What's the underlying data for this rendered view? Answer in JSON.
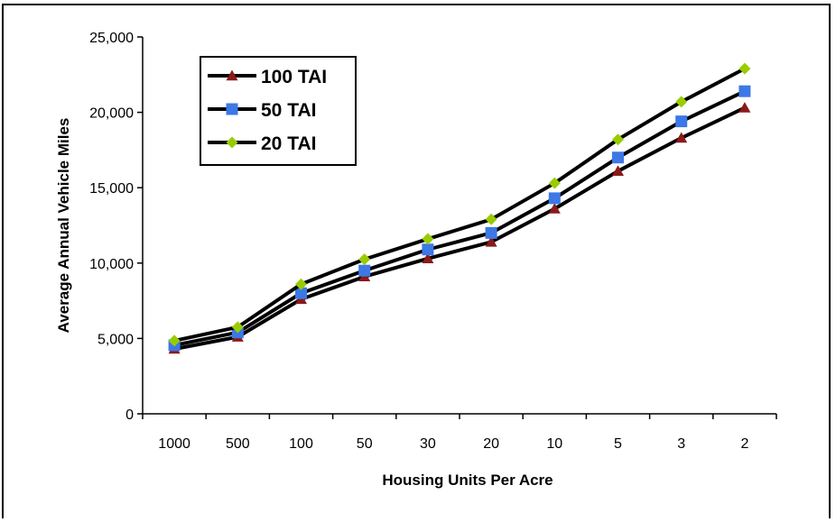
{
  "chart_data": {
    "type": "line",
    "title": "",
    "xlabel": "Housing Units Per Acre",
    "ylabel": "Average Annual Vehicle Miles",
    "categories": [
      "1000",
      "500",
      "100",
      "50",
      "30",
      "20",
      "10",
      "5",
      "3",
      "2"
    ],
    "ylim": [
      0,
      25000
    ],
    "yticks": [
      0,
      5000,
      10000,
      15000,
      20000,
      25000
    ],
    "ytick_labels": [
      "0",
      "5,000",
      "10,000",
      "15,000",
      "20,000",
      "25,000"
    ],
    "grid": false,
    "legend_position": "top-left",
    "series": [
      {
        "name": "100 TAI",
        "marker": "triangle",
        "color": "#8b1a1a",
        "values": [
          4300,
          5100,
          7600,
          9100,
          10300,
          11400,
          13600,
          16100,
          18300,
          20300
        ]
      },
      {
        "name": "50 TAI",
        "marker": "square",
        "color": "#3c78e6",
        "values": [
          4550,
          5400,
          8000,
          9500,
          10900,
          12000,
          14300,
          17000,
          19400,
          21400
        ]
      },
      {
        "name": "20 TAI",
        "marker": "diamond",
        "color": "#99cc00",
        "values": [
          4850,
          5750,
          8600,
          10250,
          11600,
          12900,
          15300,
          18200,
          20700,
          22900
        ]
      }
    ]
  }
}
